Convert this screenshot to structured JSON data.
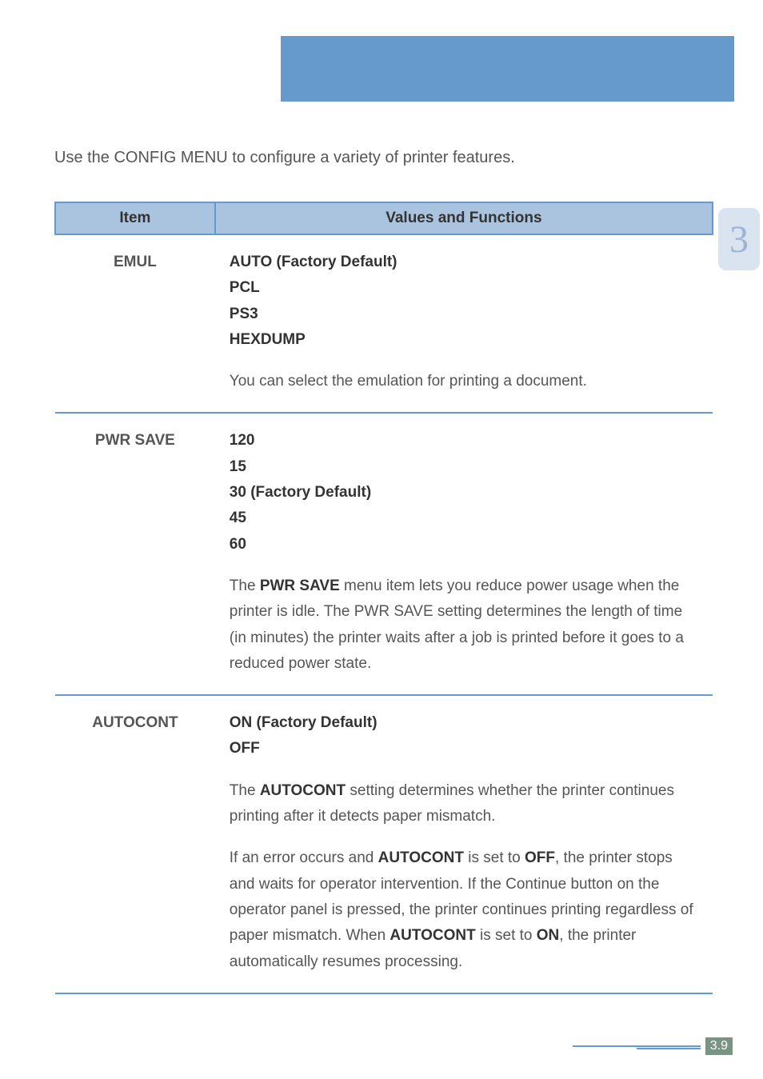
{
  "intro": "Use the CONFIG MENU to configure a variety of printer features.",
  "chapter_number": "3",
  "page_number": "3.9",
  "table": {
    "headers": {
      "item": "Item",
      "values": "Values and Functions"
    },
    "rows": [
      {
        "item": "EMUL",
        "l1": "AUTO (Factory Default)",
        "l2": "PCL",
        "l3": "PS3",
        "l4": "HEXDUMP",
        "desc": "You can select the emulation for printing a document."
      },
      {
        "item": "PWR SAVE",
        "l1": "120",
        "l2": "15",
        "l3": "30 (Factory Default)",
        "l4": "45",
        "l5": "60",
        "d_pre": "The ",
        "d_b1": "PWR SAVE",
        "d_post": " menu item lets you reduce power usage when the printer is idle. The PWR SAVE setting determines the length of time (in minutes) the printer waits after a job is printed before it goes to a reduced power state."
      },
      {
        "item": "AUTOCONT",
        "l1": "ON (Factory Default)",
        "l2": "OFF",
        "p1_pre": "The ",
        "p1_b1": "AUTOCONT",
        "p1_post": " setting determines whether the printer continues printing after it detects paper mismatch.",
        "p2_pre": "If an error occurs and ",
        "p2_b1": "AUTOCONT",
        "p2_mid1": " is set to ",
        "p2_b2": "OFF",
        "p2_mid2": ", the printer stops and waits for operator intervention. If the Continue button on the operator panel is pressed, the printer continues printing regardless of paper mismatch. When ",
        "p2_b3": "AUTOCONT",
        "p2_mid3": " is set to ",
        "p2_b4": "ON",
        "p2_post": ", the printer automatically resumes processing."
      }
    ]
  }
}
